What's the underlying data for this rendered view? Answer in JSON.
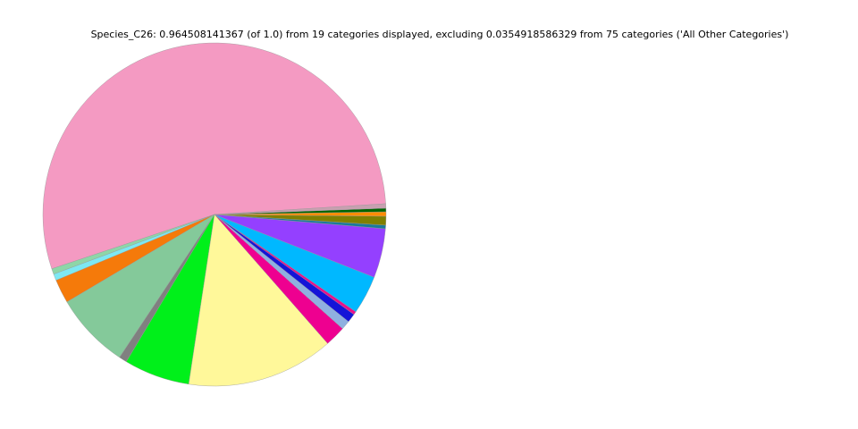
{
  "chart_data": {
    "type": "pie",
    "title": "Species_C26: 0.964508141367 (of 1.0) from 19 categories displayed, excluding 0.0354918586329 from 75 categories ('All Other Categories')",
    "values": [
      0.522,
      0.0051,
      0.0059,
      0.0217,
      0.0689,
      0.0072,
      0.0597,
      0.1337,
      0.0188,
      0.0083,
      0.008,
      0.0029,
      0.0351,
      0.0447,
      0.0032,
      0.008,
      0.004,
      0.0032,
      0.004
    ],
    "colors": [
      "#f49ac2",
      "#8ed6a8",
      "#7de8f2",
      "#f57a0a",
      "#84c99a",
      "#808080",
      "#00f01a",
      "#fff89a",
      "#ee0090",
      "#8fb0e0",
      "#1414d8",
      "#e8108c",
      "#00b8ff",
      "#9440ff",
      "#1a7a9a",
      "#808000",
      "#ff8c00",
      "#006400",
      "#c8a0b0"
    ],
    "startangle": 3.6
  }
}
